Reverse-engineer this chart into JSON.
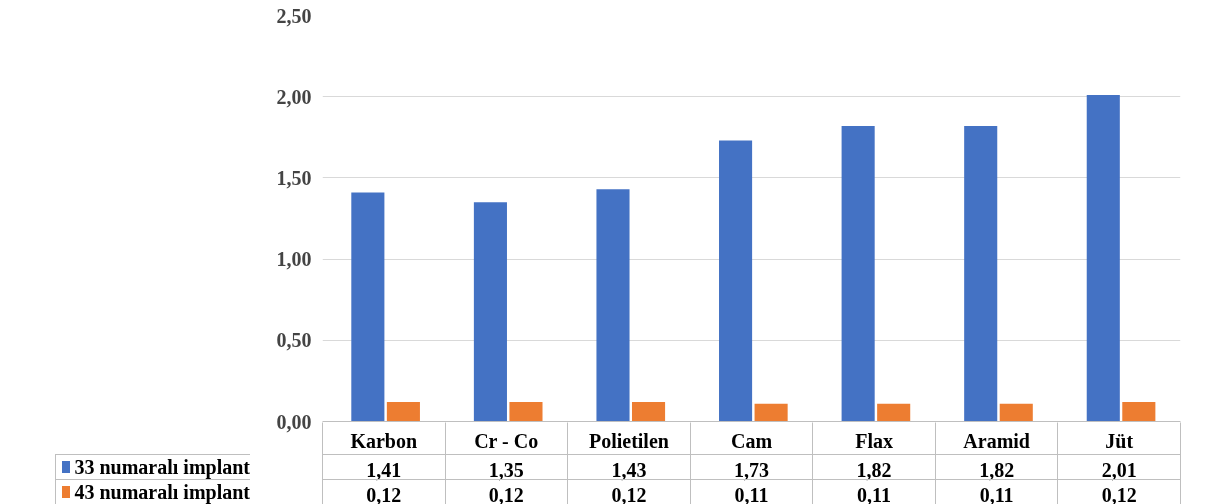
{
  "chart_data": {
    "type": "bar",
    "categories": [
      "Karbon",
      "Cr - Co",
      "Polietilen",
      "Cam",
      "Flax",
      "Aramid",
      "Jüt"
    ],
    "series": [
      {
        "name": "33 numaralı implant",
        "color": "#4472c4",
        "values": [
          1.41,
          1.35,
          1.43,
          1.73,
          1.82,
          1.82,
          2.01
        ],
        "value_labels": [
          "1,41",
          "1,35",
          "1,43",
          "1,73",
          "1,82",
          "1,82",
          "2,01"
        ]
      },
      {
        "name": "43 numaralı implant",
        "color": "#ed7d31",
        "values": [
          0.12,
          0.12,
          0.12,
          0.11,
          0.11,
          0.11,
          0.12
        ],
        "value_labels": [
          "0,12",
          "0,12",
          "0,12",
          "0,11",
          "0,11",
          "0,11",
          "0,12"
        ]
      }
    ],
    "ylim": [
      0,
      2.5
    ],
    "yticks": [
      {
        "value": 0,
        "label": "0,00"
      },
      {
        "value": 0.5,
        "label": "0,50"
      },
      {
        "value": 1,
        "label": "1,00"
      },
      {
        "value": 1.5,
        "label": "1,50"
      },
      {
        "value": 2,
        "label": "2,00"
      },
      {
        "value": 2.5,
        "label": "2,50"
      }
    ],
    "grid": "y",
    "legend": "bottom"
  }
}
